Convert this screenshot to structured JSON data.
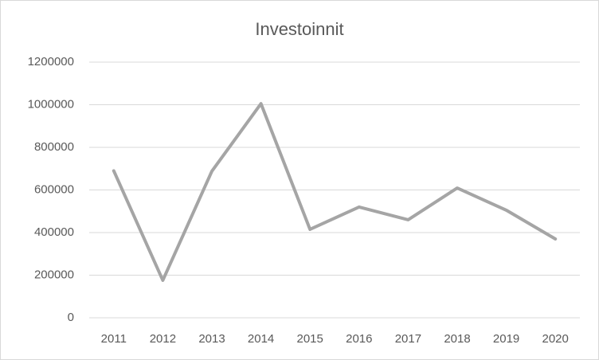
{
  "chart_data": {
    "type": "line",
    "title": "Investoinnit",
    "categories": [
      "2011",
      "2012",
      "2013",
      "2014",
      "2015",
      "2016",
      "2017",
      "2018",
      "2019",
      "2020"
    ],
    "values": [
      690000,
      176000,
      688000,
      1005000,
      415000,
      520000,
      460000,
      609000,
      505000,
      370000
    ],
    "color": "#a5a5a5",
    "ylim": [
      0,
      1200000
    ],
    "yticks": [
      0,
      200000,
      400000,
      600000,
      800000,
      1000000,
      1200000
    ],
    "grid": true
  }
}
